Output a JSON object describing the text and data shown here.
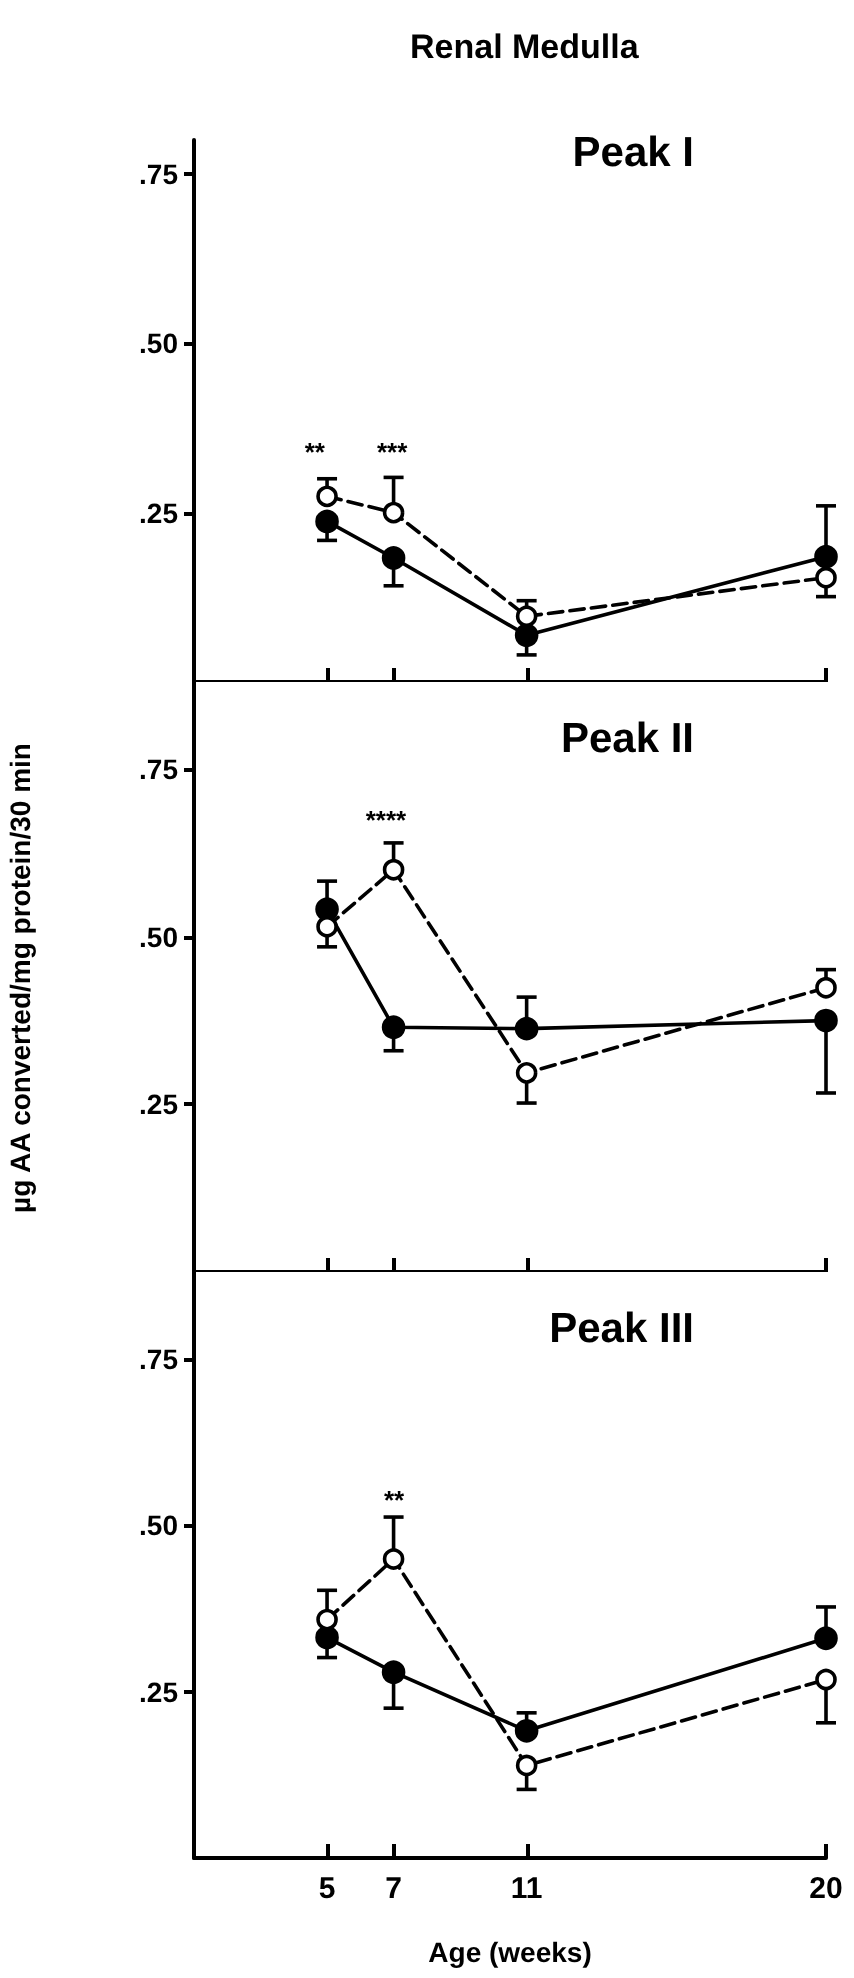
{
  "chart_data": [
    {
      "type": "line",
      "title": "Renal Medulla",
      "annotations": [
        "Peak I",
        "** ***"
      ],
      "x": [
        5,
        7,
        11,
        20
      ],
      "xlim": [
        1,
        20
      ],
      "xticks": [
        {
          "value": 5,
          "label": null
        },
        {
          "value": 7,
          "label": null
        },
        {
          "value": 11,
          "label": null
        },
        {
          "value": 20,
          "label": null
        }
      ],
      "ylim": [
        0,
        0.8
      ],
      "yticks": [
        {
          "value": 0.25,
          "label": ".25"
        },
        {
          "value": 0.5,
          "label": ".50"
        },
        {
          "value": 0.75,
          "label": ".75"
        }
      ],
      "tick_labels": "y",
      "marker": "circle",
      "series": [
        {
          "color": "#000000",
          "line_style": "solid",
          "values": [
            0.237,
            0.183,
            0.069,
            0.185
          ],
          "errors": [
            [
              0.209,
              0.237
            ],
            [
              0.142,
              0.183
            ],
            [
              0.04,
              0.069
            ],
            [
              0.185,
              0.26
            ]
          ]
        },
        {
          "color": "#000000",
          "line_style": "dashed",
          "values": [
            0.274,
            0.25,
            0.097,
            0.154
          ],
          "errors": [
            [
              0.274,
              0.3
            ],
            [
              0.25,
              0.302
            ],
            [
              0.097,
              0.12
            ],
            [
              0.126,
              0.154
            ]
          ]
        }
      ]
    },
    {
      "type": "line",
      "ylabel": "µg AA converted/mg protein/30 min",
      "annotations": [
        "Peak II",
        "****"
      ],
      "x": [
        5,
        7,
        11,
        20
      ],
      "xlim": [
        1,
        20
      ],
      "xticks": [
        {
          "value": 5,
          "label": null
        },
        {
          "value": 7,
          "label": null
        },
        {
          "value": 11,
          "label": null
        },
        {
          "value": 20,
          "label": null
        }
      ],
      "ylim": [
        0,
        0.88
      ],
      "yticks": [
        {
          "value": 0.25,
          "label": ".25"
        },
        {
          "value": 0.5,
          "label": ".50"
        },
        {
          "value": 0.75,
          "label": ".75"
        }
      ],
      "tick_labels": "y",
      "marker": "circle",
      "series": [
        {
          "color": "#000000",
          "line_style": "solid",
          "values": [
            0.541,
            0.365,
            0.363,
            0.375
          ],
          "errors": [
            [
              0.541,
              0.583
            ],
            [
              0.33,
              0.365
            ],
            [
              0.363,
              0.41
            ],
            [
              0.267,
              0.375
            ]
          ]
        },
        {
          "color": "#000000",
          "line_style": "dashed",
          "values": [
            0.515,
            0.6,
            0.297,
            0.424
          ],
          "errors": [
            [
              0.485,
              0.515
            ],
            [
              0.6,
              0.64
            ],
            [
              0.252,
              0.297
            ],
            [
              0.424,
              0.451
            ]
          ]
        }
      ]
    },
    {
      "type": "line",
      "xlabel": "Age (weeks)",
      "annotations": [
        "Peak III",
        "**"
      ],
      "x": [
        5,
        7,
        11,
        20
      ],
      "xlim": [
        1,
        20
      ],
      "xticks": [
        5,
        7,
        11,
        20
      ],
      "ylim": [
        0,
        0.88
      ],
      "yticks": [
        {
          "value": 0.25,
          "label": ".25"
        },
        {
          "value": 0.5,
          "label": ".50"
        },
        {
          "value": 0.75,
          "label": ".75"
        }
      ],
      "marker": "circle",
      "series": [
        {
          "color": "#000000",
          "line_style": "solid",
          "values": [
            0.331,
            0.279,
            0.191,
            0.33
          ],
          "errors": [
            [
              0.301,
              0.331
            ],
            [
              0.225,
              0.279
            ],
            [
              0.191,
              0.218
            ],
            [
              0.33,
              0.377
            ]
          ]
        },
        {
          "color": "#000000",
          "line_style": "dashed",
          "values": [
            0.358,
            0.449,
            0.139,
            0.268
          ],
          "errors": [
            [
              0.358,
              0.402
            ],
            [
              0.449,
              0.512
            ],
            [
              0.103,
              0.139
            ],
            [
              0.203,
              0.268
            ]
          ]
        }
      ]
    }
  ]
}
